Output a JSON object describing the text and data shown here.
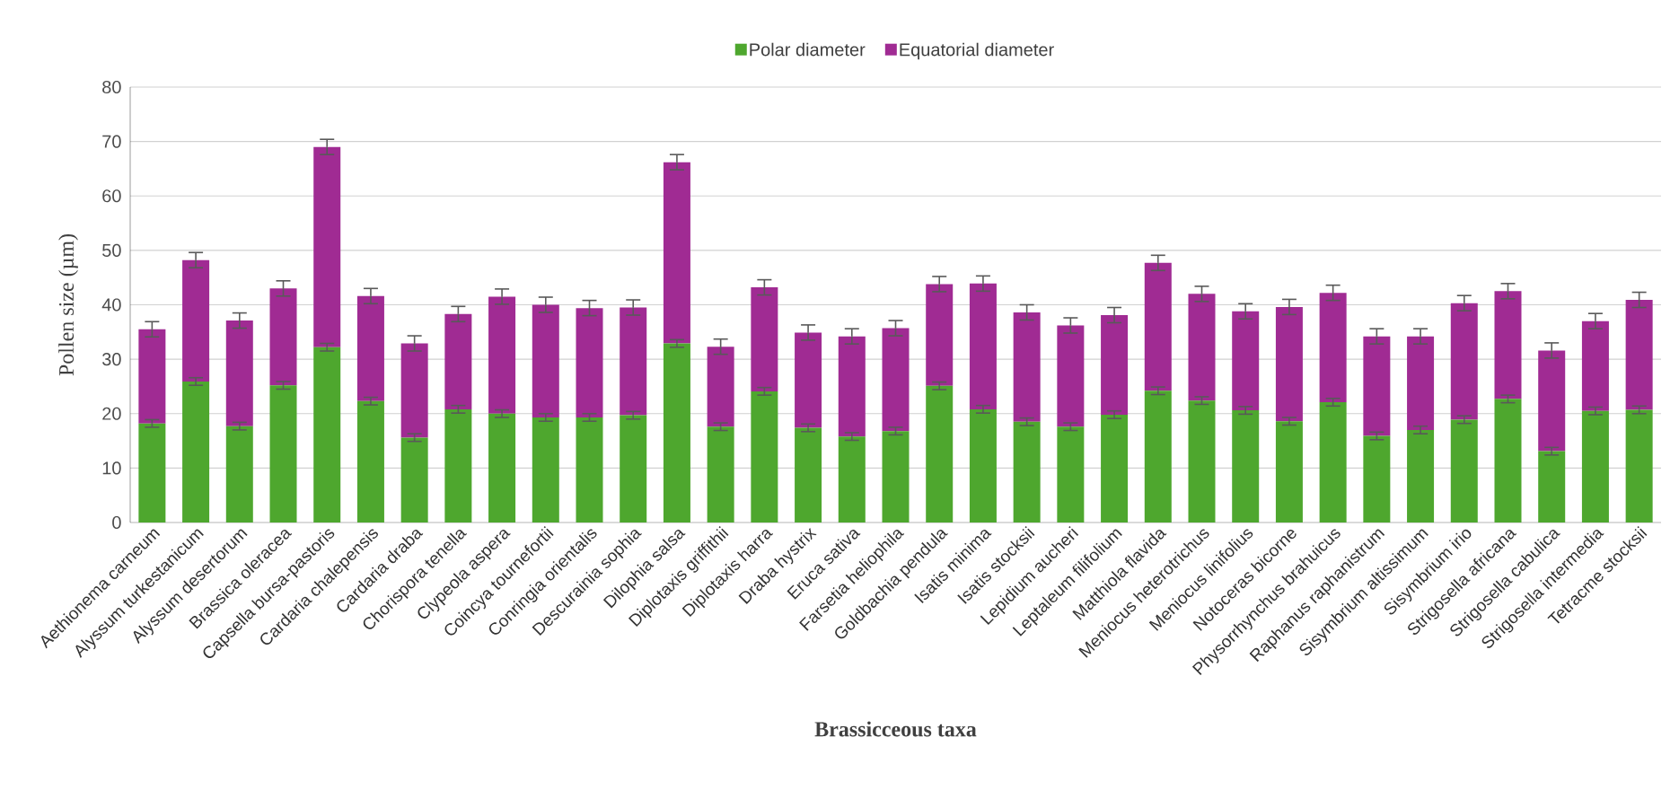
{
  "chart_data": {
    "type": "bar",
    "stacked": true,
    "xlabel": "Brassicceous taxa",
    "ylabel": "Pollen  size (µm)",
    "categories": [
      "Aethionema carneum",
      "Alyssum turkestanicum",
      "Alyssum desertorum",
      "Brassica oleracea",
      "Capsella bursa-pastoris",
      "Cardaria chalepensis",
      "Cardaria draba",
      "Chorispora tenella",
      "Clypeola aspera",
      "Coincya tournefortii",
      "Conringia orientalis",
      "Descurainia sophia",
      "Dilophia salsa",
      "Diplotaxis griffithii",
      "Diplotaxis harra",
      "Draba hystrix",
      "Eruca sativa",
      "Farsetia heliophila",
      "Goldbachia pendula",
      "Isatis minima",
      "Isatis stocksii",
      "Lepidium aucheri",
      "Leptaleum filifolium",
      "Matthiola flavida",
      "Meniocus heterotrichus",
      "Meniocus linifolius",
      "Notoceras bicorne",
      "Physorrhynchus brahuicus",
      "Raphanus raphanistrum",
      "Sisymbrium altissimum",
      "Sisymbrium irio",
      "Strigosella africana",
      "Strigosella cabulica",
      "Strigosella intermedia",
      "Tetracme stocksii"
    ],
    "series": [
      {
        "name": "Polar diameter",
        "color": "#4ea72e",
        "values": [
          18.2,
          25.9,
          17.7,
          25.2,
          32.2,
          22.3,
          15.6,
          20.8,
          20.0,
          19.3,
          19.3,
          19.7,
          32.9,
          17.6,
          24.1,
          17.4,
          15.8,
          16.8,
          25.1,
          20.8,
          18.5,
          17.6,
          19.8,
          24.2,
          22.4,
          20.6,
          18.6,
          22.1,
          15.9,
          17.0,
          18.9,
          22.7,
          13.1,
          20.5,
          20.7
        ],
        "errors": [
          0.7,
          0.7,
          0.7,
          0.7,
          0.7,
          0.7,
          0.7,
          0.7,
          0.7,
          0.7,
          0.7,
          0.7,
          0.7,
          0.7,
          0.7,
          0.7,
          0.7,
          0.7,
          0.7,
          0.7,
          0.7,
          0.7,
          0.7,
          0.7,
          0.7,
          0.7,
          0.7,
          0.7,
          0.7,
          0.7,
          0.7,
          0.7,
          0.7,
          0.7,
          0.7
        ]
      },
      {
        "name": "Equatorial diameter",
        "color": "#a02b93",
        "values": [
          17.3,
          22.3,
          19.4,
          17.8,
          36.8,
          19.3,
          17.3,
          17.5,
          21.5,
          20.7,
          20.1,
          19.8,
          33.3,
          14.7,
          19.1,
          17.5,
          18.4,
          18.9,
          18.7,
          23.1,
          20.1,
          18.6,
          18.3,
          23.5,
          19.6,
          18.2,
          21.0,
          20.1,
          18.3,
          17.2,
          21.4,
          19.8,
          18.5,
          16.5,
          20.2
        ],
        "errors": [
          1.4,
          1.4,
          1.4,
          1.4,
          1.4,
          1.4,
          1.4,
          1.4,
          1.4,
          1.4,
          1.4,
          1.4,
          1.4,
          1.4,
          1.4,
          1.4,
          1.4,
          1.4,
          1.4,
          1.4,
          1.4,
          1.4,
          1.4,
          1.4,
          1.4,
          1.4,
          1.4,
          1.4,
          1.4,
          1.4,
          1.4,
          1.4,
          1.4,
          1.4,
          1.4
        ]
      }
    ],
    "ylim": [
      0,
      80
    ],
    "yticks": [
      0,
      10,
      20,
      30,
      40,
      50,
      60,
      70,
      80
    ],
    "grid": "y",
    "legend": "top"
  }
}
